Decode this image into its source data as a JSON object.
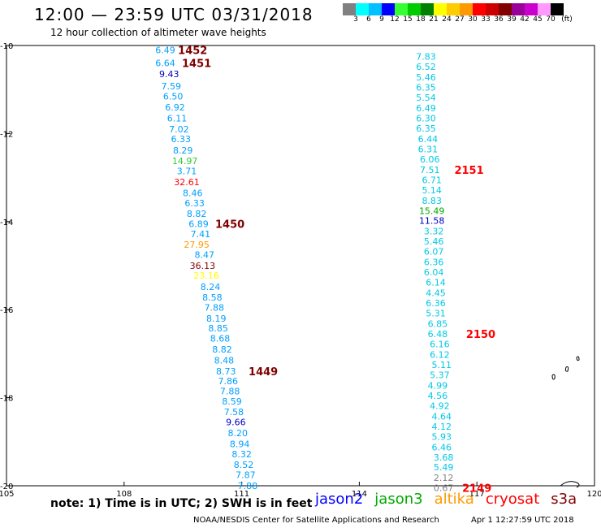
{
  "header": {
    "title": "12:00 — 23:59 UTC 03/31/2018",
    "subtitle": "12 hour collection of altimeter wave heights"
  },
  "color_scale": {
    "unit": "(ft)",
    "bins": [
      {
        "label": "3",
        "color": "#808080"
      },
      {
        "label": "6",
        "color": "#00ffff"
      },
      {
        "label": "9",
        "color": "#00c0ff"
      },
      {
        "label": "12",
        "color": "#0000ff"
      },
      {
        "label": "15",
        "color": "#33ff33"
      },
      {
        "label": "18",
        "color": "#00cc00"
      },
      {
        "label": "21",
        "color": "#008000"
      },
      {
        "label": "24",
        "color": "#ffff00"
      },
      {
        "label": "27",
        "color": "#ffcc00"
      },
      {
        "label": "30",
        "color": "#ff9900"
      },
      {
        "label": "33",
        "color": "#ff0000"
      },
      {
        "label": "36",
        "color": "#cc0000"
      },
      {
        "label": "39",
        "color": "#800000"
      },
      {
        "label": "42",
        "color": "#990099"
      },
      {
        "label": "45",
        "color": "#cc00cc"
      },
      {
        "label": "70",
        "color": "#ff99ff"
      },
      {
        "label": "",
        "color": "#000000"
      }
    ]
  },
  "map": {
    "lon_ticks": [
      {
        "lon": 105,
        "label": "105"
      },
      {
        "lon": 108,
        "label": "108"
      },
      {
        "lon": 111,
        "label": "111"
      },
      {
        "lon": 114,
        "label": "114"
      },
      {
        "lon": 117,
        "label": "117"
      },
      {
        "lon": 120,
        "label": "120"
      }
    ],
    "lat_ticks": [
      {
        "lat": -10,
        "label": "-10"
      },
      {
        "lat": -12,
        "label": "-12"
      },
      {
        "lat": -14,
        "label": "-14"
      },
      {
        "lat": -16,
        "label": "-16"
      },
      {
        "lat": -18,
        "label": "-18"
      },
      {
        "lat": -20,
        "label": "-20"
      }
    ],
    "tracks": [
      {
        "points": [
          {
            "value": "6.49",
            "lon": 109.05,
            "lat": -10.1,
            "color": "#00a0ff"
          },
          {
            "value": "6.64",
            "lon": 109.05,
            "lat": -10.4,
            "color": "#00a0ff"
          },
          {
            "value": "9.43",
            "lon": 109.15,
            "lat": -10.65,
            "color": "#0000c0"
          },
          {
            "value": "7.59",
            "lon": 109.2,
            "lat": -10.92,
            "color": "#00a0ff"
          },
          {
            "value": "6.50",
            "lon": 109.25,
            "lat": -11.15,
            "color": "#00a0ff"
          },
          {
            "value": "6.92",
            "lon": 109.3,
            "lat": -11.4,
            "color": "#00a0ff"
          },
          {
            "value": "6.11",
            "lon": 109.35,
            "lat": -11.65,
            "color": "#00a0ff"
          },
          {
            "value": "7.02",
            "lon": 109.4,
            "lat": -11.9,
            "color": "#00a0ff"
          },
          {
            "value": "6.33",
            "lon": 109.45,
            "lat": -12.12,
            "color": "#00a0ff"
          },
          {
            "value": "8.29",
            "lon": 109.5,
            "lat": -12.38,
            "color": "#00a0ff"
          },
          {
            "value": "14.97",
            "lon": 109.55,
            "lat": -12.62,
            "color": "#33cc33"
          },
          {
            "value": "3.71",
            "lon": 109.6,
            "lat": -12.85,
            "color": "#00a0ff"
          },
          {
            "value": "32.61",
            "lon": 109.6,
            "lat": -13.1,
            "color": "#ff0000"
          },
          {
            "value": "8.46",
            "lon": 109.75,
            "lat": -13.35,
            "color": "#00a0ff"
          },
          {
            "value": "6.33",
            "lon": 109.8,
            "lat": -13.58,
            "color": "#00a0ff"
          },
          {
            "value": "8.82",
            "lon": 109.85,
            "lat": -13.82,
            "color": "#00a0ff"
          },
          {
            "value": "6.89",
            "lon": 109.9,
            "lat": -14.05,
            "color": "#00a0ff"
          },
          {
            "value": "7.41",
            "lon": 109.95,
            "lat": -14.28,
            "color": "#00a0ff"
          },
          {
            "value": "27.95",
            "lon": 109.85,
            "lat": -14.52,
            "color": "#ff9900"
          },
          {
            "value": "8.47",
            "lon": 110.05,
            "lat": -14.75,
            "color": "#00a0ff"
          },
          {
            "value": "36.13",
            "lon": 110.0,
            "lat": -15.0,
            "color": "#800000"
          },
          {
            "value": "23.16",
            "lon": 110.1,
            "lat": -15.22,
            "color": "#ffff00"
          },
          {
            "value": "8.24",
            "lon": 110.2,
            "lat": -15.48,
            "color": "#00a0ff"
          },
          {
            "value": "8.58",
            "lon": 110.25,
            "lat": -15.72,
            "color": "#00a0ff"
          },
          {
            "value": "7.88",
            "lon": 110.3,
            "lat": -15.95,
            "color": "#00a0ff"
          },
          {
            "value": "8.19",
            "lon": 110.35,
            "lat": -16.2,
            "color": "#00a0ff"
          },
          {
            "value": "8.85",
            "lon": 110.4,
            "lat": -16.42,
            "color": "#00a0ff"
          },
          {
            "value": "8.68",
            "lon": 110.45,
            "lat": -16.65,
            "color": "#00a0ff"
          },
          {
            "value": "8.82",
            "lon": 110.5,
            "lat": -16.9,
            "color": "#00a0ff"
          },
          {
            "value": "8.48",
            "lon": 110.55,
            "lat": -17.15,
            "color": "#00a0ff"
          },
          {
            "value": "8.73",
            "lon": 110.6,
            "lat": -17.4,
            "color": "#00a0ff"
          },
          {
            "value": "7.86",
            "lon": 110.65,
            "lat": -17.62,
            "color": "#00a0ff"
          },
          {
            "value": "7.88",
            "lon": 110.7,
            "lat": -17.85,
            "color": "#00a0ff"
          },
          {
            "value": "8.59",
            "lon": 110.75,
            "lat": -18.08,
            "color": "#00a0ff"
          },
          {
            "value": "7.58",
            "lon": 110.8,
            "lat": -18.32,
            "color": "#00a0ff"
          },
          {
            "value": "9.66",
            "lon": 110.85,
            "lat": -18.55,
            "color": "#0000c0"
          },
          {
            "value": "8.20",
            "lon": 110.9,
            "lat": -18.8,
            "color": "#00a0ff"
          },
          {
            "value": "8.94",
            "lon": 110.95,
            "lat": -19.05,
            "color": "#00a0ff"
          },
          {
            "value": "8.32",
            "lon": 111.0,
            "lat": -19.28,
            "color": "#00a0ff"
          },
          {
            "value": "8.52",
            "lon": 111.05,
            "lat": -19.52,
            "color": "#00a0ff"
          },
          {
            "value": "7.87",
            "lon": 111.1,
            "lat": -19.75,
            "color": "#00a0ff"
          },
          {
            "value": "7.88",
            "lon": 111.15,
            "lat": -20.0,
            "color": "#00a0ff"
          }
        ],
        "passes": [
          {
            "label": "1452",
            "lon": 109.75,
            "lat": -10.1,
            "color": "#800000"
          },
          {
            "label": "1451",
            "lon": 109.85,
            "lat": -10.4,
            "color": "#800000"
          },
          {
            "label": "1450",
            "lon": 110.7,
            "lat": -14.05,
            "color": "#800000"
          },
          {
            "label": "1449",
            "lon": 111.55,
            "lat": -17.4,
            "color": "#800000"
          }
        ]
      },
      {
        "points": [
          {
            "value": "7.83",
            "lon": 115.7,
            "lat": -10.25,
            "color": "#00c8e6"
          },
          {
            "value": "6.52",
            "lon": 115.7,
            "lat": -10.48,
            "color": "#00c8e6"
          },
          {
            "value": "5.46",
            "lon": 115.7,
            "lat": -10.72,
            "color": "#00c8e6"
          },
          {
            "value": "6.35",
            "lon": 115.7,
            "lat": -10.95,
            "color": "#00c8e6"
          },
          {
            "value": "5.54",
            "lon": 115.7,
            "lat": -11.18,
            "color": "#00c8e6"
          },
          {
            "value": "6.49",
            "lon": 115.7,
            "lat": -11.42,
            "color": "#00c8e6"
          },
          {
            "value": "6.30",
            "lon": 115.7,
            "lat": -11.65,
            "color": "#00c8e6"
          },
          {
            "value": "6.35",
            "lon": 115.7,
            "lat": -11.88,
            "color": "#00c8e6"
          },
          {
            "value": "6.44",
            "lon": 115.75,
            "lat": -12.12,
            "color": "#00c8e6"
          },
          {
            "value": "6.31",
            "lon": 115.75,
            "lat": -12.35,
            "color": "#00c8e6"
          },
          {
            "value": "6.06",
            "lon": 115.8,
            "lat": -12.58,
            "color": "#00c8e6"
          },
          {
            "value": "7.51",
            "lon": 115.8,
            "lat": -12.82,
            "color": "#00c8e6"
          },
          {
            "value": "6.71",
            "lon": 115.85,
            "lat": -13.05,
            "color": "#00c8e6"
          },
          {
            "value": "5.14",
            "lon": 115.85,
            "lat": -13.28,
            "color": "#00c8e6"
          },
          {
            "value": "8.83",
            "lon": 115.85,
            "lat": -13.52,
            "color": "#00c8e6"
          },
          {
            "value": "15.49",
            "lon": 115.85,
            "lat": -13.75,
            "color": "#00aa00"
          },
          {
            "value": "11.58",
            "lon": 115.85,
            "lat": -13.98,
            "color": "#0000c0"
          },
          {
            "value": "3.32",
            "lon": 115.9,
            "lat": -14.22,
            "color": "#00c8e6"
          },
          {
            "value": "5.46",
            "lon": 115.9,
            "lat": -14.45,
            "color": "#00c8e6"
          },
          {
            "value": "6.07",
            "lon": 115.9,
            "lat": -14.68,
            "color": "#00c8e6"
          },
          {
            "value": "6.36",
            "lon": 115.9,
            "lat": -14.92,
            "color": "#00c8e6"
          },
          {
            "value": "6.04",
            "lon": 115.9,
            "lat": -15.15,
            "color": "#00c8e6"
          },
          {
            "value": "6.14",
            "lon": 115.95,
            "lat": -15.38,
            "color": "#00c8e6"
          },
          {
            "value": "4.45",
            "lon": 115.95,
            "lat": -15.62,
            "color": "#00c8e6"
          },
          {
            "value": "6.36",
            "lon": 115.95,
            "lat": -15.85,
            "color": "#00c8e6"
          },
          {
            "value": "5.31",
            "lon": 115.95,
            "lat": -16.08,
            "color": "#00c8e6"
          },
          {
            "value": "6.85",
            "lon": 116.0,
            "lat": -16.32,
            "color": "#00c8e6"
          },
          {
            "value": "6.48",
            "lon": 116.0,
            "lat": -16.55,
            "color": "#00c8e6"
          },
          {
            "value": "6.16",
            "lon": 116.05,
            "lat": -16.78,
            "color": "#00c8e6"
          },
          {
            "value": "6.12",
            "lon": 116.05,
            "lat": -17.02,
            "color": "#00c8e6"
          },
          {
            "value": "5.11",
            "lon": 116.1,
            "lat": -17.25,
            "color": "#00c8e6"
          },
          {
            "value": "5.37",
            "lon": 116.05,
            "lat": -17.48,
            "color": "#00c8e6"
          },
          {
            "value": "4.99",
            "lon": 116.0,
            "lat": -17.72,
            "color": "#00c8e6"
          },
          {
            "value": "4.56",
            "lon": 116.0,
            "lat": -17.95,
            "color": "#00c8e6"
          },
          {
            "value": "4.92",
            "lon": 116.05,
            "lat": -18.18,
            "color": "#00c8e6"
          },
          {
            "value": "4.64",
            "lon": 116.1,
            "lat": -18.42,
            "color": "#00c8e6"
          },
          {
            "value": "4.12",
            "lon": 116.1,
            "lat": -18.65,
            "color": "#00c8e6"
          },
          {
            "value": "5.93",
            "lon": 116.1,
            "lat": -18.88,
            "color": "#00c8e6"
          },
          {
            "value": "6.46",
            "lon": 116.1,
            "lat": -19.12,
            "color": "#00c8e6"
          },
          {
            "value": "3.68",
            "lon": 116.15,
            "lat": -19.35,
            "color": "#00c8e6"
          },
          {
            "value": "5.49",
            "lon": 116.15,
            "lat": -19.58,
            "color": "#00c8e6"
          },
          {
            "value": "2.12",
            "lon": 116.15,
            "lat": -19.82,
            "color": "#808080"
          },
          {
            "value": "0.67",
            "lon": 116.15,
            "lat": -20.05,
            "color": "#808080"
          }
        ],
        "passes": [
          {
            "label": "2151",
            "lon": 116.8,
            "lat": -12.82,
            "color": "#ff0000"
          },
          {
            "label": "2150",
            "lon": 117.1,
            "lat": -16.55,
            "color": "#ff0000"
          },
          {
            "label": "2149",
            "lon": 117.0,
            "lat": -20.05,
            "color": "#ff0000"
          }
        ]
      }
    ]
  },
  "satellites": [
    {
      "name": "jason2",
      "color": "#0000ff"
    },
    {
      "name": "jason3",
      "color": "#00aa00"
    },
    {
      "name": "altika",
      "color": "#ff9900"
    },
    {
      "name": "cryosat",
      "color": "#ff0000"
    },
    {
      "name": "s3a",
      "color": "#800000"
    }
  ],
  "footer": {
    "note": "note: 1) Time is in UTC; 2) SWH is in feet",
    "credit": "NOAA/NESDIS Center for Satellite Applications and Research",
    "issued": "Apr  1 12:27:59 UTC 2018"
  }
}
